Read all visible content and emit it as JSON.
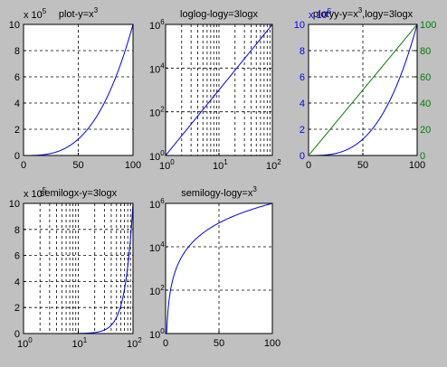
{
  "figure": {
    "background": "#c0c0c0",
    "axes_bg": "#ffffff",
    "blue": "#0000ff",
    "green": "#008000",
    "black": "#000000"
  },
  "chart_data": [
    {
      "id": "p1",
      "type": "line",
      "title": "plot-y=x",
      "title_sup": "3",
      "xscale": "linear",
      "yscale": "linear",
      "xlim": [
        0,
        100
      ],
      "ylim": [
        0,
        1000000
      ],
      "xticks": [
        0,
        50,
        100
      ],
      "xticklabels": [
        "0",
        "50",
        "100"
      ],
      "yticks": [
        0,
        200000,
        400000,
        600000,
        800000,
        1000000
      ],
      "yticklabels": [
        "0",
        "2",
        "4",
        "6",
        "8",
        "10"
      ],
      "multiplier": {
        "base": "x 10",
        "exp": "5"
      },
      "grid": true,
      "series": [
        {
          "color": "#0000ff",
          "function": "x^3",
          "x": [
            1,
            10,
            20,
            30,
            40,
            50,
            60,
            70,
            80,
            90,
            100
          ],
          "y": [
            1,
            1000,
            8000,
            27000,
            64000,
            125000,
            216000,
            343000,
            512000,
            729000,
            1000000
          ]
        }
      ]
    },
    {
      "id": "p2",
      "type": "line",
      "title": "loglog-logy=3logx",
      "xscale": "log",
      "yscale": "log",
      "xlim": [
        1,
        100
      ],
      "ylim": [
        1,
        1000000
      ],
      "xticks": [
        1,
        10,
        100
      ],
      "xticklabels": [
        {
          "base": "10",
          "exp": "0"
        },
        {
          "base": "10",
          "exp": "1"
        },
        {
          "base": "10",
          "exp": "2"
        }
      ],
      "yticks": [
        1,
        100,
        10000,
        1000000
      ],
      "yticklabels": [
        {
          "base": "10",
          "exp": "0"
        },
        {
          "base": "10",
          "exp": "2"
        },
        {
          "base": "10",
          "exp": "4"
        },
        {
          "base": "10",
          "exp": "6"
        }
      ],
      "grid": true,
      "minor_grid_x": true,
      "series": [
        {
          "color": "#0000ff",
          "function": "x^3",
          "x": [
            1,
            10,
            100
          ],
          "y": [
            1,
            1000,
            1000000
          ]
        }
      ]
    },
    {
      "id": "p3",
      "type": "line",
      "title": "plotyy-y=x",
      "title_sup": "3",
      "title_tail": ",logy=3logx",
      "xscale": "linear",
      "xlim": [
        0,
        100
      ],
      "ylim": [
        0,
        1000000
      ],
      "y2lim": [
        0,
        100
      ],
      "xticks": [
        0,
        50,
        100
      ],
      "xticklabels": [
        "0",
        "50",
        "100"
      ],
      "yticks": [
        0,
        200000,
        400000,
        600000,
        800000,
        1000000
      ],
      "yticklabels": [
        "0",
        "2",
        "4",
        "6",
        "8",
        "10"
      ],
      "y2ticks": [
        0,
        20,
        40,
        60,
        80,
        100
      ],
      "y2ticklabels": [
        "0",
        "20",
        "40",
        "60",
        "80",
        "100"
      ],
      "multiplier": {
        "base": "x 10",
        "exp": "5"
      },
      "grid": true,
      "series": [
        {
          "axis": "left",
          "color": "#0000ff",
          "function": "x^3",
          "x": [
            1,
            10,
            20,
            30,
            40,
            50,
            60,
            70,
            80,
            90,
            100
          ],
          "y": [
            1,
            1000,
            8000,
            27000,
            64000,
            125000,
            216000,
            343000,
            512000,
            729000,
            1000000
          ]
        },
        {
          "axis": "right",
          "color": "#008000",
          "function": "x",
          "x": [
            1,
            100
          ],
          "y": [
            1,
            100
          ]
        }
      ]
    },
    {
      "id": "p4",
      "type": "line",
      "title": "semilogx-y=3logx",
      "xscale": "log",
      "yscale": "linear",
      "xlim": [
        1,
        100
      ],
      "ylim": [
        0,
        1000000
      ],
      "xticks": [
        1,
        10,
        100
      ],
      "xticklabels": [
        {
          "base": "10",
          "exp": "0"
        },
        {
          "base": "10",
          "exp": "1"
        },
        {
          "base": "10",
          "exp": "2"
        }
      ],
      "yticks": [
        0,
        200000,
        400000,
        600000,
        800000,
        1000000
      ],
      "yticklabels": [
        "0",
        "2",
        "4",
        "6",
        "8",
        "10"
      ],
      "multiplier": {
        "base": "x 10",
        "exp": "5"
      },
      "grid": true,
      "minor_grid_x": true,
      "series": [
        {
          "color": "#0000ff",
          "function": "x^3",
          "x": [
            1,
            10,
            20,
            40,
            60,
            80,
            100
          ],
          "y": [
            1,
            1000,
            8000,
            64000,
            216000,
            512000,
            1000000
          ]
        }
      ]
    },
    {
      "id": "p5",
      "type": "line",
      "title": "semilogy-logy=x",
      "title_sup": "3",
      "xscale": "linear",
      "yscale": "log",
      "xlim": [
        0,
        100
      ],
      "ylim": [
        1,
        1000000
      ],
      "xticks": [
        0,
        50,
        100
      ],
      "xticklabels": [
        "0",
        "50",
        "100"
      ],
      "yticks": [
        1,
        100,
        10000,
        1000000
      ],
      "yticklabels": [
        {
          "base": "10",
          "exp": "0"
        },
        {
          "base": "10",
          "exp": "2"
        },
        {
          "base": "10",
          "exp": "4"
        },
        {
          "base": "10",
          "exp": "6"
        }
      ],
      "grid": true,
      "series": [
        {
          "color": "#0000ff",
          "function": "x^3",
          "x": [
            1,
            10,
            20,
            50,
            100
          ],
          "y": [
            1,
            1000,
            8000,
            125000,
            1000000
          ]
        }
      ]
    }
  ]
}
